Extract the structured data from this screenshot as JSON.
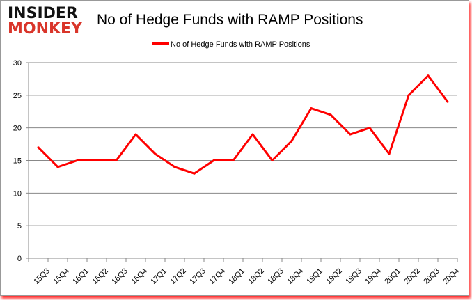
{
  "logo": {
    "line1": "INSIDER",
    "line2": "MONKEY"
  },
  "chart_data": {
    "type": "line",
    "title": "No of Hedge Funds with RAMP Positions",
    "xlabel": "",
    "ylabel": "",
    "ylim": [
      0,
      30
    ],
    "yticks": [
      0,
      5,
      10,
      15,
      20,
      25,
      30
    ],
    "grid": true,
    "legend": "top-center",
    "categories": [
      "15Q3",
      "15Q4",
      "16Q1",
      "16Q2",
      "16Q3",
      "16Q4",
      "17Q1",
      "17Q2",
      "17Q3",
      "17Q4",
      "18Q1",
      "18Q2",
      "18Q3",
      "18Q4",
      "19Q1",
      "19Q2",
      "19Q3",
      "19Q4",
      "20Q1",
      "20Q2",
      "20Q3",
      "20Q4"
    ],
    "series": [
      {
        "name": "No of Hedge Funds with RAMP Positions",
        "color": "#ff0000",
        "values": [
          17,
          14,
          15,
          15,
          15,
          19,
          16,
          14,
          13,
          15,
          15,
          19,
          15,
          18,
          23,
          22,
          19,
          20,
          16,
          25,
          28,
          24
        ]
      }
    ]
  }
}
